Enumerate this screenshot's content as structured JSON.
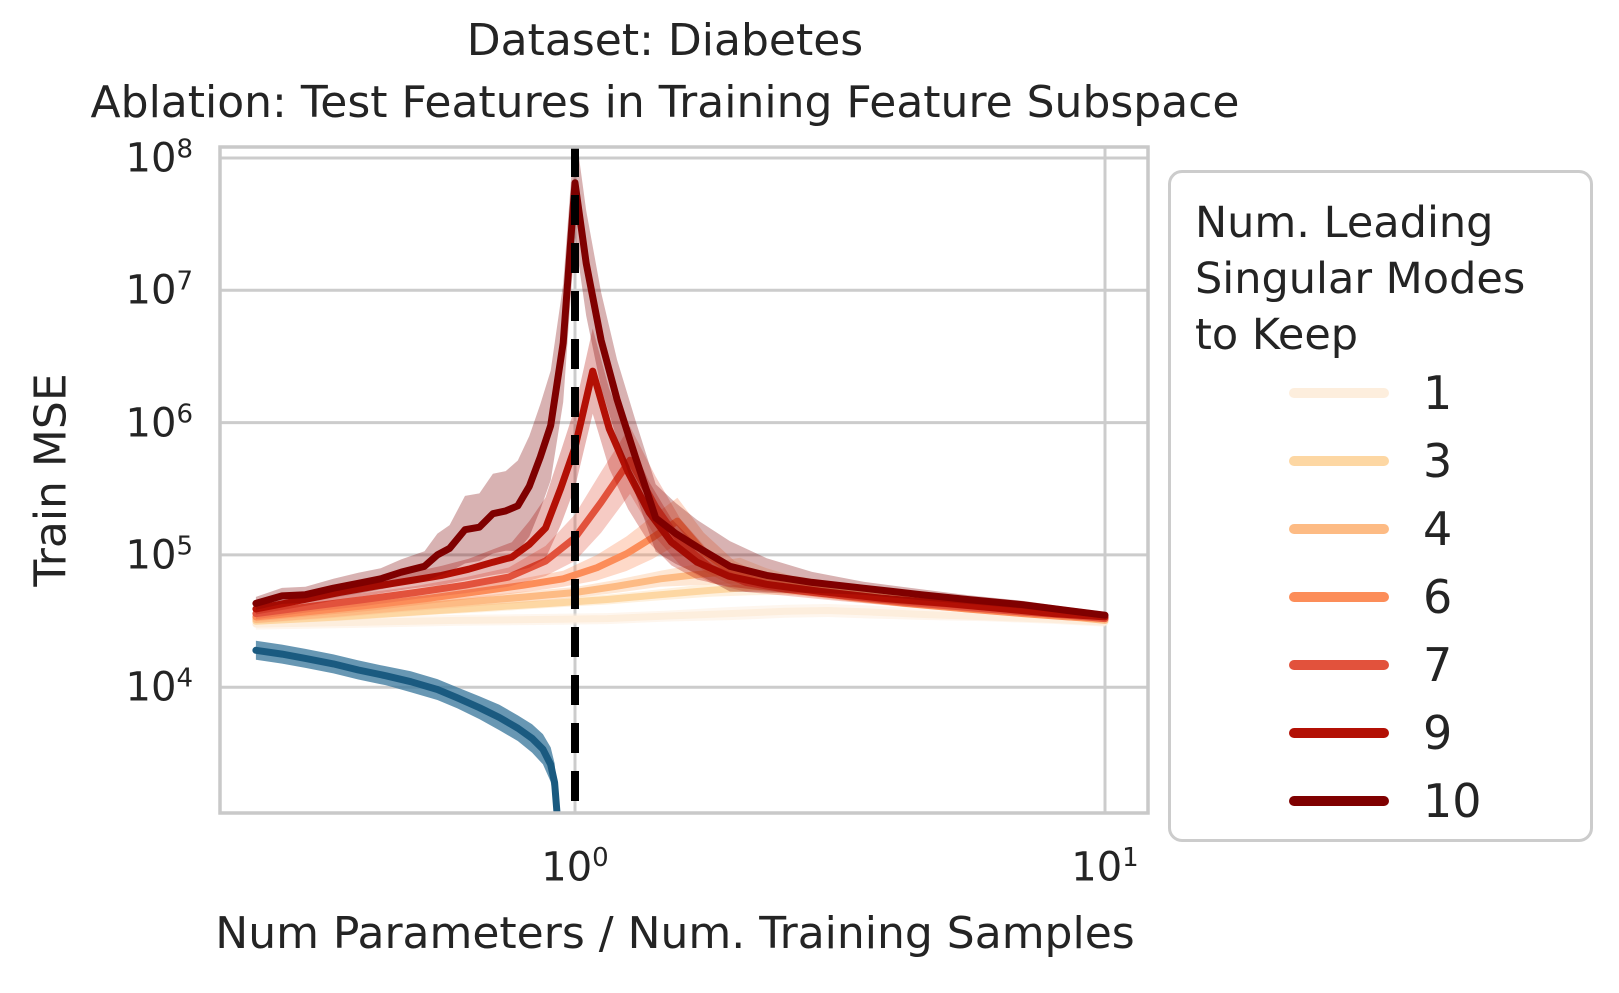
{
  "title": {
    "line1": "Dataset: Diabetes",
    "line2": "Ablation: Test Features in Training Feature Subspace"
  },
  "chart_data": {
    "type": "line",
    "title": "Dataset: Diabetes — Ablation: Test Features in Training Feature Subspace",
    "xlabel": "Num Parameters / Num. Training Samples",
    "ylabel": "Train MSE",
    "x_scale": "log",
    "y_scale": "log",
    "xlim": [
      0.214,
      12.1
    ],
    "ylim": [
      1200,
      115000000
    ],
    "grid": true,
    "x_ticks": [
      {
        "base": "10",
        "exp": "0",
        "value": 1
      },
      {
        "base": "10",
        "exp": "1",
        "value": 10
      }
    ],
    "y_ticks": [
      {
        "base": "10",
        "exp": "8",
        "value": 100000000.0
      },
      {
        "base": "10",
        "exp": "7",
        "value": 10000000.0
      },
      {
        "base": "10",
        "exp": "6",
        "value": 1000000.0
      },
      {
        "base": "10",
        "exp": "5",
        "value": 100000.0
      },
      {
        "base": "10",
        "exp": "4",
        "value": 10000.0
      }
    ],
    "vline": {
      "x": 1.0,
      "color": "#000000",
      "style": "dashed"
    },
    "colors": {
      "grid": "#cccccc",
      "spine": "#c9c9c9",
      "text": "#242424",
      "baseline_blue": "#1a5a80"
    },
    "legend": {
      "title_lines": [
        "Num. Leading",
        "Singular Modes",
        "to Keep"
      ],
      "position": "right",
      "entries": [
        {
          "label": "1",
          "color": "#fdeedd"
        },
        {
          "label": "3",
          "color": "#fdd7a3"
        },
        {
          "label": "4",
          "color": "#fdbb84"
        },
        {
          "label": "6",
          "color": "#fc8d59"
        },
        {
          "label": "7",
          "color": "#e2523c"
        },
        {
          "label": "9",
          "color": "#b31005"
        },
        {
          "label": "10",
          "color": "#7f0000"
        }
      ]
    },
    "series": [
      {
        "name": "1",
        "color": "#fdeedd",
        "band_opacity": 0.5,
        "x": [
          0.25,
          0.4,
          0.6,
          0.85,
          1.15,
          1.5,
          1.95,
          2.5,
          3.0,
          3.6,
          4.5,
          6.0,
          8.0,
          10.0
        ],
        "y": [
          30000,
          31000,
          32000,
          32500,
          33000,
          34500,
          36000,
          37500,
          38000,
          37000,
          35500,
          34000,
          32500,
          31000
        ],
        "band_factor": [
          1.1,
          1.1,
          1.1,
          1.1,
          1.1,
          1.1,
          1.12,
          1.12,
          1.12,
          1.12,
          1.1,
          1.08,
          1.08,
          1.08
        ]
      },
      {
        "name": "3",
        "color": "#fdd7a3",
        "band_opacity": 0.35,
        "x": [
          0.25,
          0.36,
          0.5,
          0.68,
          0.9,
          1.15,
          1.45,
          1.8,
          2.15,
          2.6,
          3.1,
          3.8,
          4.7,
          6.0,
          7.5,
          10.0
        ],
        "y": [
          31500,
          34000,
          37000,
          40000,
          43000,
          46000,
          50000,
          54000,
          57000,
          59000,
          54000,
          49000,
          45000,
          41000,
          37000,
          33000
        ],
        "band_factor": [
          1.06,
          1.07,
          1.07,
          1.08,
          1.08,
          1.09,
          1.1,
          1.12,
          1.15,
          1.18,
          1.15,
          1.1,
          1.08,
          1.07,
          1.06,
          1.05
        ]
      },
      {
        "name": "4",
        "color": "#fdbb84",
        "band_opacity": 0.35,
        "x": [
          0.25,
          0.35,
          0.47,
          0.62,
          0.8,
          1.0,
          1.2,
          1.45,
          1.7,
          1.9,
          2.05,
          2.3,
          2.7,
          3.2,
          4.0,
          5.0,
          6.5,
          8.0,
          10.0
        ],
        "y": [
          32500,
          36000,
          40000,
          44000,
          48000,
          52000,
          58000,
          66000,
          71000,
          74000,
          76000,
          66000,
          57000,
          51000,
          46000,
          42000,
          38000,
          35000,
          32000
        ],
        "band_factor": [
          1.07,
          1.08,
          1.08,
          1.09,
          1.1,
          1.1,
          1.12,
          1.15,
          1.2,
          1.22,
          1.25,
          1.2,
          1.15,
          1.1,
          1.08,
          1.07,
          1.06,
          1.05,
          1.05
        ]
      },
      {
        "name": "6",
        "color": "#fc8d59",
        "band_opacity": 0.33,
        "x": [
          0.25,
          0.33,
          0.42,
          0.53,
          0.66,
          0.8,
          0.95,
          1.1,
          1.25,
          1.4,
          1.56,
          1.75,
          2.0,
          2.3,
          2.7,
          3.3,
          4.2,
          5.5,
          7.0,
          8.5,
          10.0
        ],
        "y": [
          34000,
          38000,
          42000,
          47000,
          53000,
          59000,
          66000,
          80000,
          102000,
          135000,
          180000,
          105000,
          72000,
          60000,
          54000,
          48000,
          43000,
          39000,
          36000,
          34000,
          33000
        ],
        "band_factor": [
          1.08,
          1.09,
          1.1,
          1.1,
          1.12,
          1.13,
          1.15,
          1.25,
          1.35,
          1.45,
          1.5,
          1.4,
          1.25,
          1.15,
          1.1,
          1.08,
          1.07,
          1.06,
          1.06,
          1.05,
          1.05
        ]
      },
      {
        "name": "7",
        "color": "#e2523c",
        "band_opacity": 0.3,
        "x": [
          0.25,
          0.32,
          0.4,
          0.5,
          0.62,
          0.75,
          0.88,
          1.0,
          1.12,
          1.27,
          1.42,
          1.58,
          1.8,
          2.1,
          2.5,
          3.2,
          4.2,
          5.5,
          7.0,
          8.5,
          10.0
        ],
        "y": [
          36000,
          41000,
          46000,
          52000,
          59000,
          68000,
          90000,
          135000,
          250000,
          520000,
          230000,
          125000,
          80000,
          62000,
          55000,
          49000,
          44000,
          40000,
          37000,
          35000,
          33000
        ],
        "band_factor": [
          1.1,
          1.1,
          1.12,
          1.12,
          1.15,
          1.18,
          1.3,
          1.5,
          1.7,
          1.8,
          1.7,
          1.5,
          1.3,
          1.18,
          1.12,
          1.1,
          1.08,
          1.07,
          1.06,
          1.06,
          1.05
        ]
      },
      {
        "name": "9",
        "color": "#b31005",
        "band_opacity": 0.3,
        "x": [
          0.25,
          0.3,
          0.36,
          0.42,
          0.49,
          0.56,
          0.63,
          0.7,
          0.76,
          0.82,
          0.88,
          0.94,
          1.0,
          1.08,
          1.16,
          1.26,
          1.38,
          1.52,
          1.7,
          1.95,
          2.3,
          2.9,
          3.8,
          5.0,
          6.5,
          8.0,
          10.0
        ],
        "y": [
          39000,
          45000,
          52000,
          58000,
          64000,
          70000,
          78000,
          88000,
          96000,
          120000,
          160000,
          320000,
          650000,
          2450000,
          900000,
          420000,
          210000,
          125000,
          88000,
          69000,
          60000,
          53000,
          47000,
          43000,
          39000,
          36000,
          34000
        ],
        "band_factor": [
          1.1,
          1.12,
          1.13,
          1.15,
          1.15,
          1.18,
          1.2,
          1.25,
          1.3,
          1.5,
          1.7,
          1.9,
          2.0,
          2.1,
          2.0,
          1.9,
          1.7,
          1.5,
          1.35,
          1.2,
          1.12,
          1.1,
          1.08,
          1.07,
          1.06,
          1.06,
          1.05
        ]
      },
      {
        "name": "10",
        "color": "#7f0000",
        "band_opacity": 0.3,
        "x": [
          0.25,
          0.28,
          0.31,
          0.35,
          0.39,
          0.43,
          0.47,
          0.52,
          0.55,
          0.58,
          0.62,
          0.66,
          0.7,
          0.74,
          0.78,
          0.82,
          0.86,
          0.9,
          0.95,
          1.0,
          1.05,
          1.12,
          1.2,
          1.3,
          1.42,
          1.55,
          1.7,
          1.96,
          2.3,
          2.8,
          3.5,
          4.5,
          5.5,
          7.0,
          8.5,
          10.0
        ],
        "y": [
          43000,
          49000,
          50000,
          56000,
          61000,
          66000,
          74000,
          82000,
          100000,
          112000,
          155000,
          162000,
          205000,
          215000,
          235000,
          330000,
          550000,
          950000,
          4000000,
          65000000,
          16000000,
          4200000,
          1500000,
          550000,
          190000,
          145000,
          115000,
          82000,
          70000,
          62000,
          56000,
          50000,
          46000,
          42000,
          38000,
          35000
        ],
        "band_factor": [
          1.12,
          1.15,
          1.15,
          1.18,
          1.2,
          1.2,
          1.25,
          1.3,
          1.45,
          1.5,
          1.8,
          1.8,
          2.0,
          2.0,
          2.2,
          2.4,
          2.5,
          2.6,
          2.8,
          2.6,
          2.5,
          2.3,
          2.0,
          1.9,
          1.8,
          1.7,
          1.6,
          1.55,
          1.35,
          1.2,
          1.12,
          1.1,
          1.08,
          1.07,
          1.06,
          1.06
        ]
      },
      {
        "name": "baseline",
        "color": "#1a5a80",
        "band_color": "#35749a",
        "band_opacity": 0.75,
        "in_legend": false,
        "x": [
          0.25,
          0.28,
          0.31,
          0.35,
          0.39,
          0.44,
          0.49,
          0.55,
          0.6,
          0.66,
          0.72,
          0.78,
          0.83,
          0.87,
          0.9,
          0.915,
          0.925
        ],
        "y": [
          19000,
          17800,
          16500,
          15000,
          13500,
          12200,
          11000,
          9600,
          8300,
          7000,
          5900,
          4900,
          4100,
          3400,
          2600,
          1900,
          1100
        ],
        "band_factor": [
          1.18,
          1.18,
          1.18,
          1.18,
          1.18,
          1.18,
          1.2,
          1.2,
          1.2,
          1.22,
          1.25,
          1.25,
          1.28,
          1.3,
          1.35,
          1.4,
          1.5
        ]
      }
    ]
  }
}
